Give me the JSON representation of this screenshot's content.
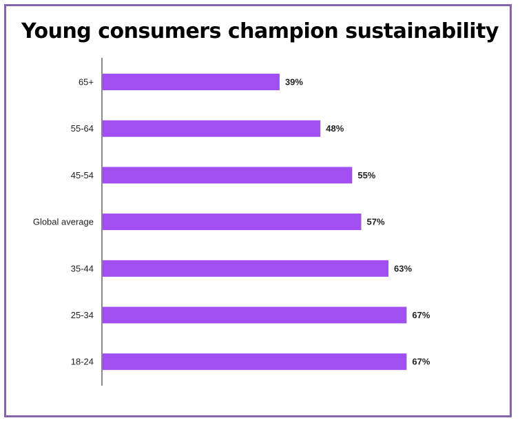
{
  "chart_data": {
    "type": "bar",
    "orientation": "horizontal",
    "title": "Young consumers champion sustainability",
    "categories": [
      "65+",
      "55-64",
      "45-54",
      "Global average",
      "35-44",
      "25-34",
      "18-24"
    ],
    "values": [
      39,
      48,
      55,
      57,
      63,
      67,
      67
    ],
    "value_labels": [
      "39%",
      "48%",
      "55%",
      "57%",
      "63%",
      "67%",
      "67%"
    ],
    "xlim": [
      0,
      85
    ],
    "grid": false,
    "legend": "none",
    "bar_color": "#a14ef3",
    "frame_color": "#8465ad"
  }
}
